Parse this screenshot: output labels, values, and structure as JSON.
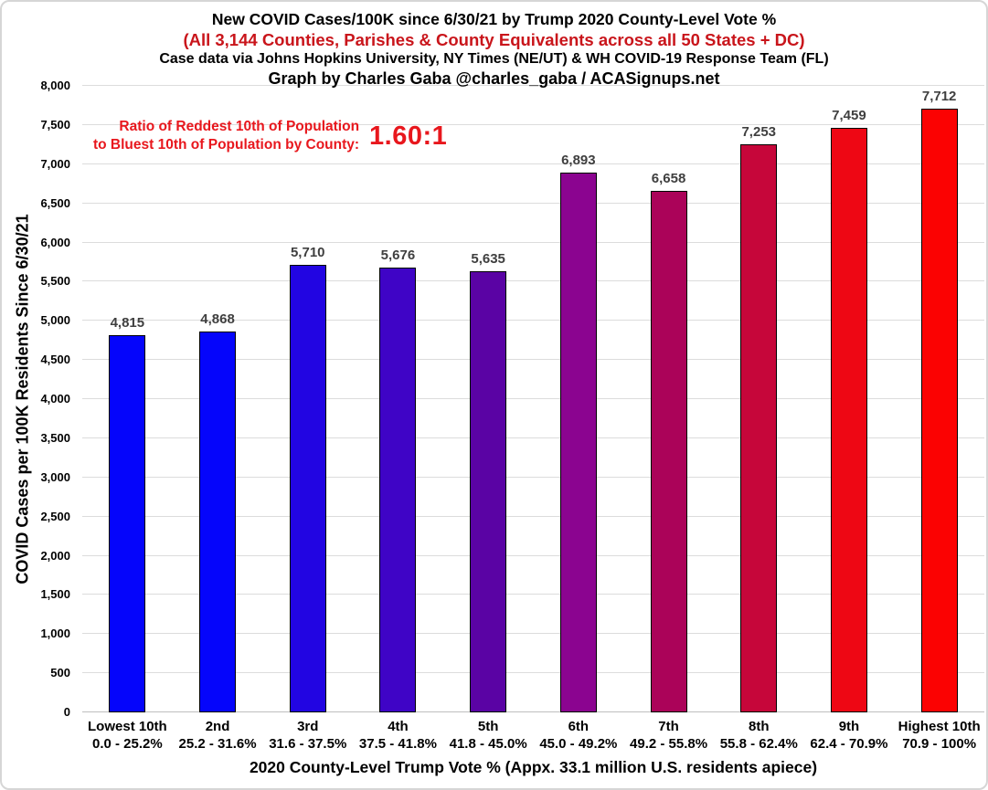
{
  "header": {
    "title": "New COVID Cases/100K since 6/30/21 by Trump 2020 County-Level Vote %",
    "subtitle": "(All 3,144 Counties, Parishes & County Equivalents across all 50 States + DC)",
    "source_line": "Case data via Johns Hopkins University, NY Times (NE/UT) & WH COVID-19 Response Team (FL)",
    "credit_line": "Graph by Charles Gaba @charles_gaba / ACASignups.net"
  },
  "annotation": {
    "line1": "Ratio of Reddest 10th of Population",
    "line2": "to Bluest 10th of Population by County:",
    "ratio": "1.60:1"
  },
  "chart_data": {
    "type": "bar",
    "title": "New COVID Cases/100K since 6/30/21 by Trump 2020 County-Level Vote %",
    "xlabel": "2020 County-Level Trump Vote % (Appx. 33.1 million U.S. residents apiece)",
    "ylabel": "COVID Cases per 100K Residents Since 6/30/21",
    "ylim": [
      0,
      8000
    ],
    "ytick_interval": 500,
    "ytick_labels": [
      "0",
      "500",
      "1,000",
      "1,500",
      "2,000",
      "2,500",
      "3,000",
      "3,500",
      "4,000",
      "4,500",
      "5,000",
      "5,500",
      "6,000",
      "6,500",
      "7,000",
      "7,500",
      "8,000"
    ],
    "grid": true,
    "legend_position": "none",
    "categories": [
      "Lowest 10th",
      "2nd",
      "3rd",
      "4th",
      "5th",
      "6th",
      "7th",
      "8th",
      "9th",
      "Highest 10th"
    ],
    "category_ranges": [
      "0.0 - 25.2%",
      "25.2 - 31.6%",
      "31.6 - 37.5%",
      "37.5 - 41.8%",
      "41.8 - 45.0%",
      "45.0 - 49.2%",
      "49.2 - 55.8%",
      "55.8 - 62.4%",
      "62.4 - 70.9%",
      "70.9 - 100%"
    ],
    "values": [
      4815,
      4868,
      5710,
      5676,
      5635,
      6893,
      6658,
      7253,
      7459,
      7712
    ],
    "value_labels": [
      "4,815",
      "4,868",
      "5,710",
      "5,676",
      "5,635",
      "6,893",
      "6,658",
      "7,253",
      "7,459",
      "7,712"
    ],
    "bar_colors": [
      "#0505fb",
      "#0505fb",
      "#2205e2",
      "#3f04c6",
      "#5a03a4",
      "#8b0490",
      "#ab0359",
      "#c6063a",
      "#ee0714",
      "#fb0202"
    ]
  },
  "colors": {
    "subtitle_red": "#c9151b",
    "annotation_red": "#e8171d",
    "data_label_gray": "#3f3f3f",
    "gridline": "#dcdcdc",
    "baseline": "#bfbfbf",
    "bar_border": "#000000",
    "blue_end": "#0505fb",
    "red_end": "#fb0202"
  }
}
